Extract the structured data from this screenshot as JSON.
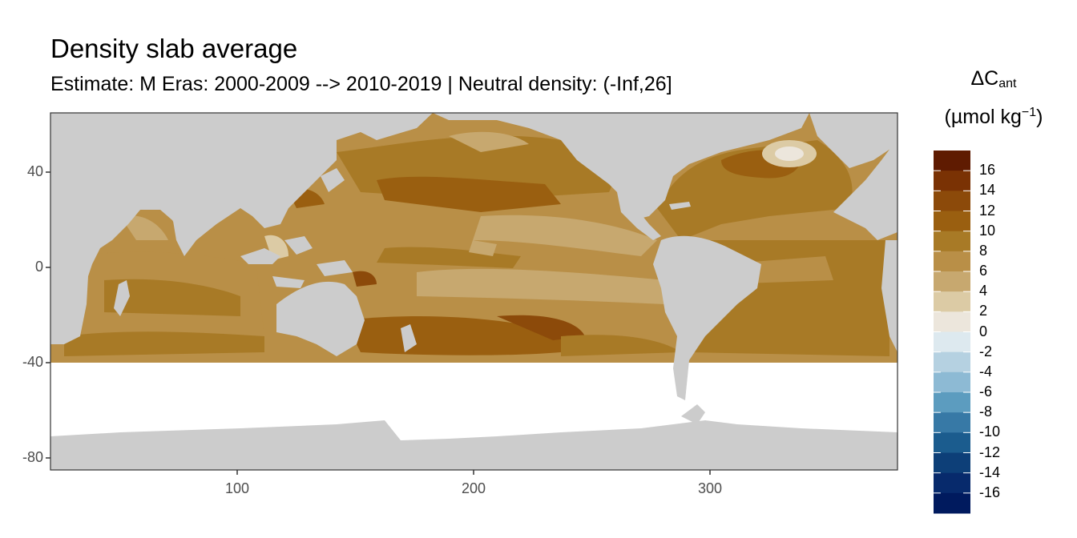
{
  "title": "Density slab average",
  "subtitle": "Estimate: M Eras: 2000-2009 --> 2010-2019 | Neutral density: (-Inf,26]",
  "legend": {
    "title_main": "ΔC",
    "title_sub": "ant",
    "unit_pre": "(µmol kg",
    "unit_sup": "−1",
    "unit_post": ")",
    "labels": [
      "16",
      "14",
      "12",
      "10",
      "8",
      "6",
      "4",
      "2",
      "0",
      "-2",
      "-4",
      "-6",
      "-8",
      "-10",
      "-12",
      "-14",
      "-16"
    ],
    "colors": [
      "#5f1b01",
      "#7a3204",
      "#8c4a0a",
      "#9a5f10",
      "#a87a26",
      "#b98f47",
      "#c7a86f",
      "#dccba5",
      "#ece6dc",
      "#dde9ef",
      "#b5d1e1",
      "#8dbad4",
      "#5c9cbf",
      "#3779a6",
      "#1b5c8e",
      "#0d3f78",
      "#072a6c",
      "#001a5e"
    ]
  },
  "x_ticks": [
    "100",
    "200",
    "300"
  ],
  "y_ticks": [
    "40",
    "0",
    "-40",
    "-80"
  ],
  "colors": {
    "land": "#cccccc",
    "no_data": "#ffffff",
    "grid": "#ebebeb",
    "panel_border": "#333333"
  }
}
